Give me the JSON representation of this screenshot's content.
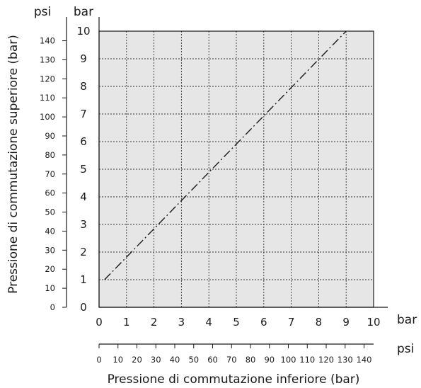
{
  "chart_data": {
    "type": "line",
    "xlabel": "Pressione di commutazione inferiore (bar)",
    "ylabel": "Pressione di commutazione superiore (bar)",
    "x_unit_primary": "bar",
    "x_unit_secondary": "psi",
    "y_unit_primary": "bar",
    "y_unit_secondary": "psi",
    "xlim": [
      0,
      10
    ],
    "ylim": [
      0,
      10
    ],
    "x_ticks_bar": [
      "0",
      "1",
      "2",
      "3",
      "4",
      "5",
      "6",
      "7",
      "8",
      "9",
      "10"
    ],
    "y_ticks_bar": [
      "0",
      "1",
      "2",
      "3",
      "4",
      "5",
      "6",
      "7",
      "8",
      "9",
      "10"
    ],
    "x_ticks_psi": [
      "0",
      "10",
      "20",
      "30",
      "40",
      "50",
      "60",
      "70",
      "80",
      "90",
      "100",
      "110",
      "120",
      "130",
      "140"
    ],
    "y_ticks_psi": [
      "0",
      "10",
      "20",
      "30",
      "40",
      "50",
      "60",
      "70",
      "80",
      "90",
      "100",
      "110",
      "120",
      "130",
      "140"
    ],
    "psi_per_bar": 14.5038,
    "grid": true,
    "series": [
      {
        "x": [
          0.2,
          9.0
        ],
        "y": [
          1.0,
          10.0
        ]
      }
    ],
    "colors": {
      "plot_background": "#e6e6e6",
      "grid": "#333333",
      "axis": "#1a1a1a",
      "line": "#1a1a1a"
    }
  }
}
